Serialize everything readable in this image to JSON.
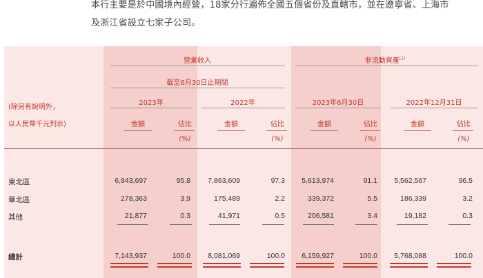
{
  "intro": {
    "line1": "本行主要是於中國境內經營，18家分行遍佈全國五個省份及直轄市，並在遼寧省、上海市",
    "line2": "及浙江省設立七家子公司。"
  },
  "headers": {
    "revenue": "營業收入",
    "non_current_assets": "非流動資產",
    "footnote": "(1)",
    "period": "截至6月30日止期間",
    "years": [
      "2023年",
      "2022年",
      "2023年6月30日",
      "2022年12月31日"
    ],
    "stub_line1": "(除另有說明外，",
    "stub_line2": "以人民幣千元列示)",
    "amount": "金額",
    "ratio": "佔比",
    "pct": "(%)"
  },
  "rows": [
    {
      "label": "東北區",
      "values": [
        "6,843,697",
        "95.8",
        "7,863,609",
        "97.3",
        "5,613,974",
        "91.1",
        "5,562,567",
        "96.5"
      ]
    },
    {
      "label": "華北區",
      "values": [
        "278,363",
        "3.9",
        "175,489",
        "2.2",
        "339,372",
        "5.5",
        "186,339",
        "3.2"
      ]
    },
    {
      "label": "其他",
      "values": [
        "21,877",
        "0.3",
        "41,971",
        "0.5",
        "206,581",
        "3.4",
        "19,182",
        "0.3"
      ]
    }
  ],
  "total": {
    "label": "總計",
    "values": [
      "7,143,937",
      "100.0",
      "8,081,069",
      "100.0",
      "6,159,927",
      "100.0",
      "5,768,088",
      "100.0"
    ]
  },
  "colors": {
    "accent": "#c0392b",
    "panel": "#fbe8e6",
    "shade": "#f5cfcb"
  }
}
